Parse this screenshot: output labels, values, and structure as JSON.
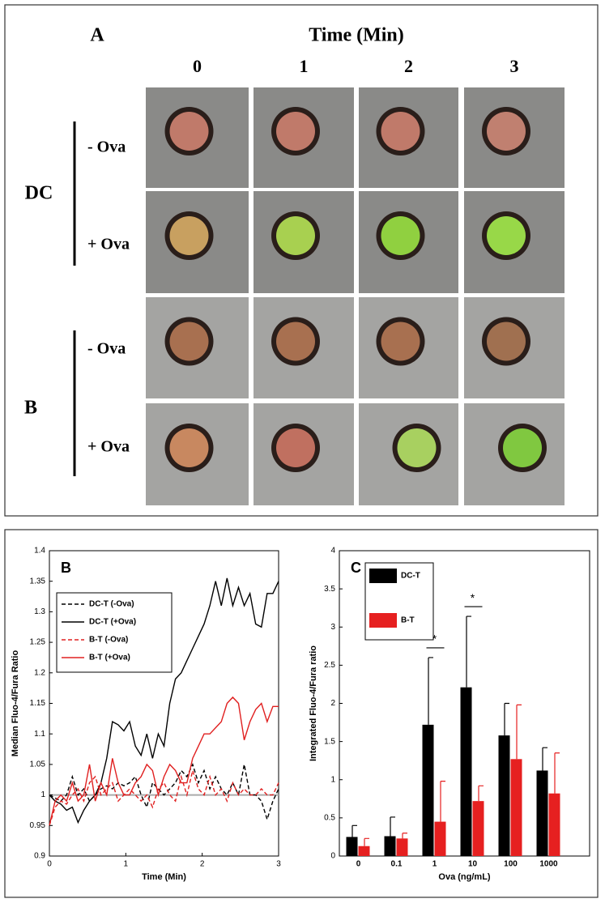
{
  "panel_a": {
    "label": "A",
    "time_title": "Time (Min)",
    "time_points": [
      "0",
      "1",
      "2",
      "3"
    ],
    "groups": [
      {
        "name": "DC",
        "rows": [
          "- Ova",
          "+ Ova"
        ]
      },
      {
        "name": "B",
        "rows": [
          "- Ova",
          "+ Ova"
        ]
      }
    ]
  },
  "chart_data": [
    {
      "type": "line",
      "panel_label": "B",
      "x_label": "Time (Min)",
      "y_label": "Median Fluo-4/Fura Ratio",
      "xlim": [
        0,
        3
      ],
      "xticks": [
        0,
        1,
        2,
        3
      ],
      "ylim": [
        0.9,
        1.4
      ],
      "yticks": [
        0.9,
        0.95,
        1,
        1.05,
        1.1,
        1.15,
        1.2,
        1.25,
        1.3,
        1.35,
        1.4
      ],
      "reference_line": 1,
      "reference_color": "#aaaaaa",
      "legend": "upper left",
      "x": [
        0,
        0.075,
        0.15,
        0.225,
        0.3,
        0.375,
        0.45,
        0.525,
        0.6,
        0.675,
        0.75,
        0.825,
        0.9,
        0.975,
        1.05,
        1.125,
        1.2,
        1.275,
        1.35,
        1.425,
        1.5,
        1.575,
        1.65,
        1.725,
        1.8,
        1.875,
        1.95,
        2.025,
        2.1,
        2.175,
        2.25,
        2.325,
        2.4,
        2.475,
        2.55,
        2.625,
        2.7,
        2.775,
        2.85,
        2.925,
        3
      ],
      "series": [
        {
          "name": "DC-T (-Ova)",
          "color": "#000000",
          "style": "dashed",
          "values": [
            1.0,
            0.995,
            0.99,
            1.0,
            1.03,
            1.0,
            1.01,
            0.99,
            1.0,
            1.01,
            1.015,
            1.01,
            1.02,
            1.015,
            1.02,
            1.03,
            1.0,
            0.98,
            1.02,
            1.01,
            1.0,
            1.01,
            1.02,
            1.04,
            1.03,
            1.05,
            1.02,
            1.04,
            1.01,
            1.03,
            1.01,
            1.0,
            1.02,
            1.0,
            1.05,
            1.0,
            1.0,
            0.99,
            0.96,
            0.99,
            1.01
          ]
        },
        {
          "name": "DC-T (+Ova)",
          "color": "#000000",
          "style": "solid",
          "values": [
            1.0,
            0.99,
            0.985,
            0.975,
            0.98,
            0.955,
            0.975,
            0.99,
            1.0,
            1.02,
            1.06,
            1.12,
            1.115,
            1.105,
            1.12,
            1.08,
            1.065,
            1.1,
            1.06,
            1.1,
            1.08,
            1.15,
            1.19,
            1.2,
            1.22,
            1.24,
            1.26,
            1.28,
            1.31,
            1.35,
            1.31,
            1.355,
            1.31,
            1.34,
            1.31,
            1.33,
            1.28,
            1.275,
            1.33,
            1.33,
            1.35
          ]
        },
        {
          "name": "B-T  (-Ova)",
          "color": "#e02020",
          "style": "dashed",
          "values": [
            0.95,
            0.98,
            0.99,
            0.985,
            1.0,
            1.01,
            0.99,
            1.02,
            1.03,
            1.0,
            1.01,
            1.02,
            0.99,
            1.0,
            1.01,
            1.0,
            0.99,
            1.0,
            0.98,
            1.01,
            1.02,
            1.0,
            0.99,
            1.03,
            1.0,
            1.04,
            1.01,
            1.0,
            1.03,
            1.0,
            1.01,
            0.99,
            1.02,
            1.0,
            1.01,
            1.0,
            1.0,
            1.01,
            1.0,
            1.0,
            1.02
          ]
        },
        {
          "name": "B-T  (+Ova)",
          "color": "#e02020",
          "style": "solid",
          "values": [
            0.95,
            0.99,
            1.0,
            0.99,
            1.02,
            0.99,
            1.0,
            1.05,
            0.99,
            1.02,
            1.0,
            1.06,
            1.02,
            1.0,
            1.0,
            1.02,
            1.03,
            1.05,
            1.04,
            1.0,
            1.03,
            1.05,
            1.04,
            1.02,
            1.02,
            1.06,
            1.08,
            1.1,
            1.1,
            1.11,
            1.12,
            1.15,
            1.16,
            1.15,
            1.09,
            1.12,
            1.14,
            1.15,
            1.12,
            1.145,
            1.145
          ]
        }
      ]
    },
    {
      "type": "bar",
      "panel_label": "C",
      "x_label": "Ova (ng/mL)",
      "y_label": "Integrated Fluo-4/Fura ratio",
      "categories": [
        "0",
        "0.1",
        "1",
        "10",
        "100",
        "1000"
      ],
      "ylim": [
        0,
        4
      ],
      "yticks": [
        0,
        0.5,
        1,
        1.5,
        2,
        2.5,
        3,
        3.5,
        4
      ],
      "legend": "upper left",
      "series": [
        {
          "name": "DC-T",
          "color": "#000000",
          "values": [
            0.25,
            0.26,
            1.72,
            2.21,
            1.58,
            1.12
          ],
          "errors": [
            0.15,
            0.25,
            0.88,
            0.93,
            0.42,
            0.3
          ]
        },
        {
          "name": "B-T",
          "color": "#e62020",
          "values": [
            0.13,
            0.23,
            0.45,
            0.72,
            1.27,
            0.82
          ],
          "errors": [
            0.1,
            0.07,
            0.53,
            0.2,
            0.71,
            0.53
          ]
        }
      ],
      "annotations": [
        {
          "text": "*",
          "category": "1"
        },
        {
          "text": "*",
          "category": "10"
        }
      ]
    }
  ]
}
